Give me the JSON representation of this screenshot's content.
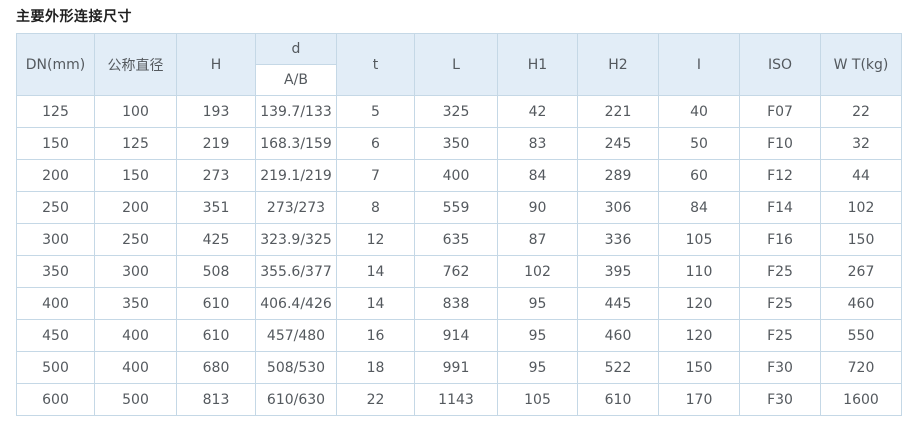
{
  "page": {
    "title": "主要外形连接尺寸"
  },
  "table": {
    "header": {
      "dn": "DN(mm)",
      "nominal_diameter": "公称直径",
      "h": "H",
      "d": "d",
      "d_sub": "A/B",
      "t": "t",
      "l": "L",
      "h1": "H1",
      "h2": "H2",
      "i": "I",
      "iso": "ISO",
      "wt": "W T(kg)"
    },
    "rows": [
      [
        "125",
        "100",
        "193",
        "139.7/133",
        "5",
        "325",
        "42",
        "221",
        "40",
        "F07",
        "22"
      ],
      [
        "150",
        "125",
        "219",
        "168.3/159",
        "6",
        "350",
        "83",
        "245",
        "50",
        "F10",
        "32"
      ],
      [
        "200",
        "150",
        "273",
        "219.1/219",
        "7",
        "400",
        "84",
        "289",
        "60",
        "F12",
        "44"
      ],
      [
        "250",
        "200",
        "351",
        "273/273",
        "8",
        "559",
        "90",
        "306",
        "84",
        "F14",
        "102"
      ],
      [
        "300",
        "250",
        "425",
        "323.9/325",
        "12",
        "635",
        "87",
        "336",
        "105",
        "F16",
        "150"
      ],
      [
        "350",
        "300",
        "508",
        "355.6/377",
        "14",
        "762",
        "102",
        "395",
        "110",
        "F25",
        "267"
      ],
      [
        "400",
        "350",
        "610",
        "406.4/426",
        "14",
        "838",
        "95",
        "445",
        "120",
        "F25",
        "460"
      ],
      [
        "450",
        "400",
        "610",
        "457/480",
        "16",
        "914",
        "95",
        "460",
        "120",
        "F25",
        "550"
      ],
      [
        "500",
        "400",
        "680",
        "508/530",
        "18",
        "991",
        "95",
        "522",
        "150",
        "F30",
        "720"
      ],
      [
        "600",
        "500",
        "813",
        "610/630",
        "22",
        "1143",
        "105",
        "610",
        "170",
        "F30",
        "1600"
      ]
    ]
  },
  "colors": {
    "header_bg": "#e2edf7",
    "border": "#c5d8e6",
    "text": "#54595e",
    "title_text": "#1f1f1f"
  }
}
